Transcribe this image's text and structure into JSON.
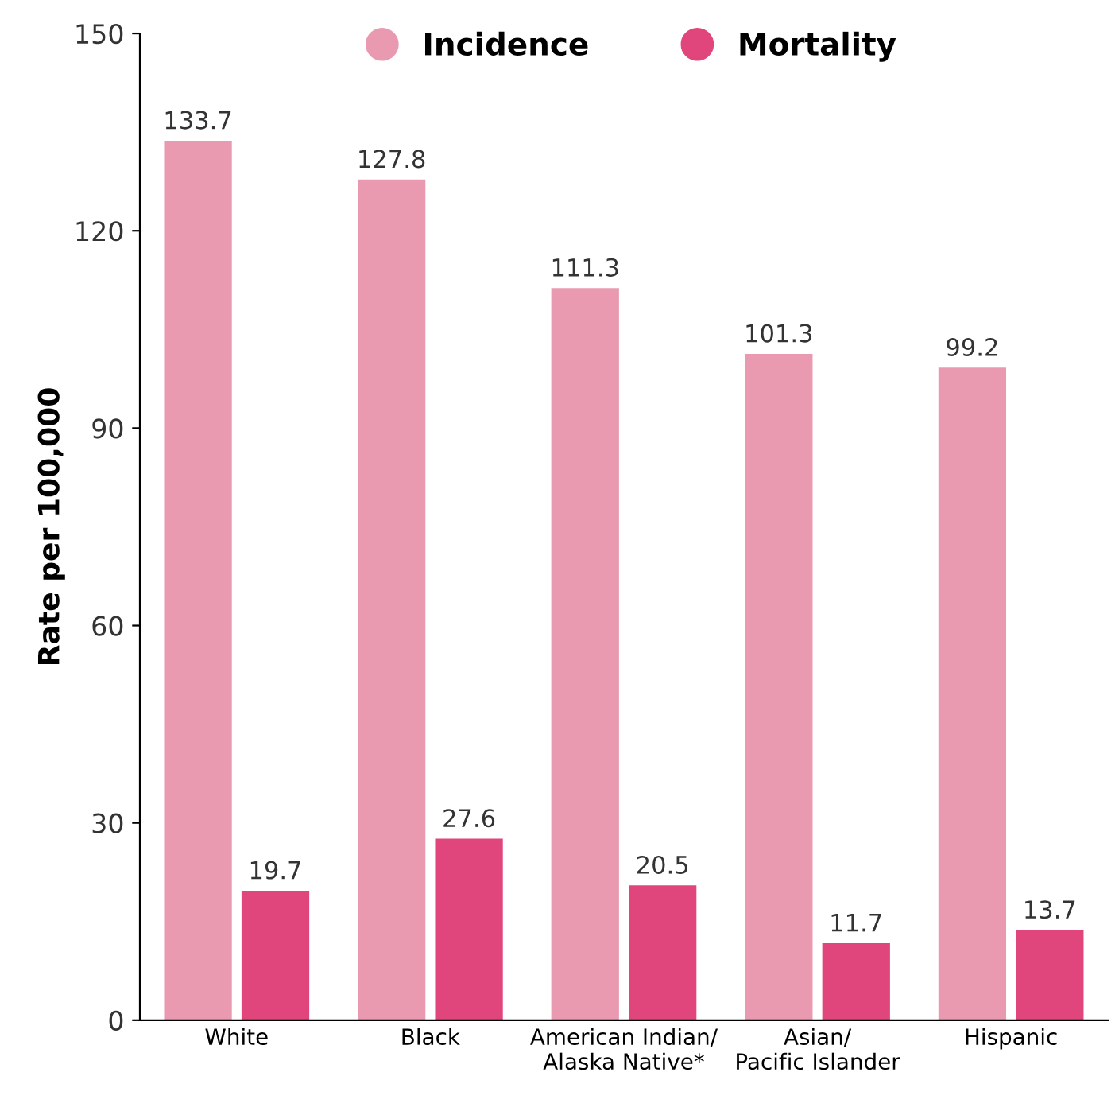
{
  "chart_data": {
    "type": "bar",
    "ylabel": "Rate per 100,000",
    "categories": [
      "White",
      "Black",
      "American Indian/\nAlaska Native*",
      "Asian/\nPacific Islander",
      "Hispanic"
    ],
    "series": [
      {
        "name": "Incidence",
        "color": "#e99ab0",
        "values": [
          133.7,
          127.8,
          111.3,
          101.3,
          99.2
        ]
      },
      {
        "name": "Mortality",
        "color": "#e0457b",
        "values": [
          19.7,
          27.6,
          20.5,
          11.7,
          13.7
        ]
      }
    ],
    "ylim": [
      0,
      150
    ],
    "yticks": [
      0,
      30,
      60,
      90,
      120,
      150
    ],
    "data_labels": true,
    "grid": false,
    "legend": "top",
    "marker": "circle"
  }
}
